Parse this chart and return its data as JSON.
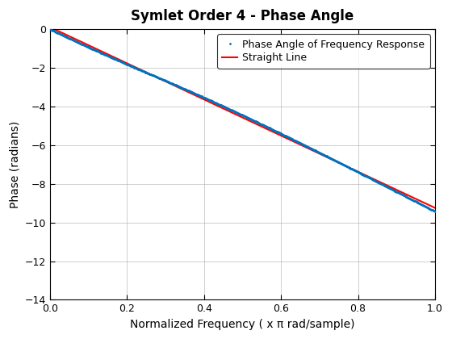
{
  "title": "Symlet Order 4 - Phase Angle",
  "xlabel": "Normalized Frequency ( x π rad/sample)",
  "ylabel": "Phase (radians)",
  "xlim": [
    0,
    1
  ],
  "ylim": [
    -14,
    0
  ],
  "yticks": [
    0,
    -2,
    -4,
    -6,
    -8,
    -10,
    -12,
    -14
  ],
  "xticks": [
    0,
    0.2,
    0.4,
    0.6,
    0.8,
    1.0
  ],
  "legend_labels": [
    "Phase Angle of Frequency Response",
    "Straight Line"
  ],
  "dot_color": "#0072bd",
  "line_color": "#ff0000",
  "background_color": "#ffffff",
  "grid_color": "#b0b0b0",
  "n_points": 512,
  "filter_order": 4,
  "title_fontsize": 12,
  "label_fontsize": 10,
  "legend_fontsize": 9,
  "dot_markersize": 2.0,
  "line_width": 1.5
}
